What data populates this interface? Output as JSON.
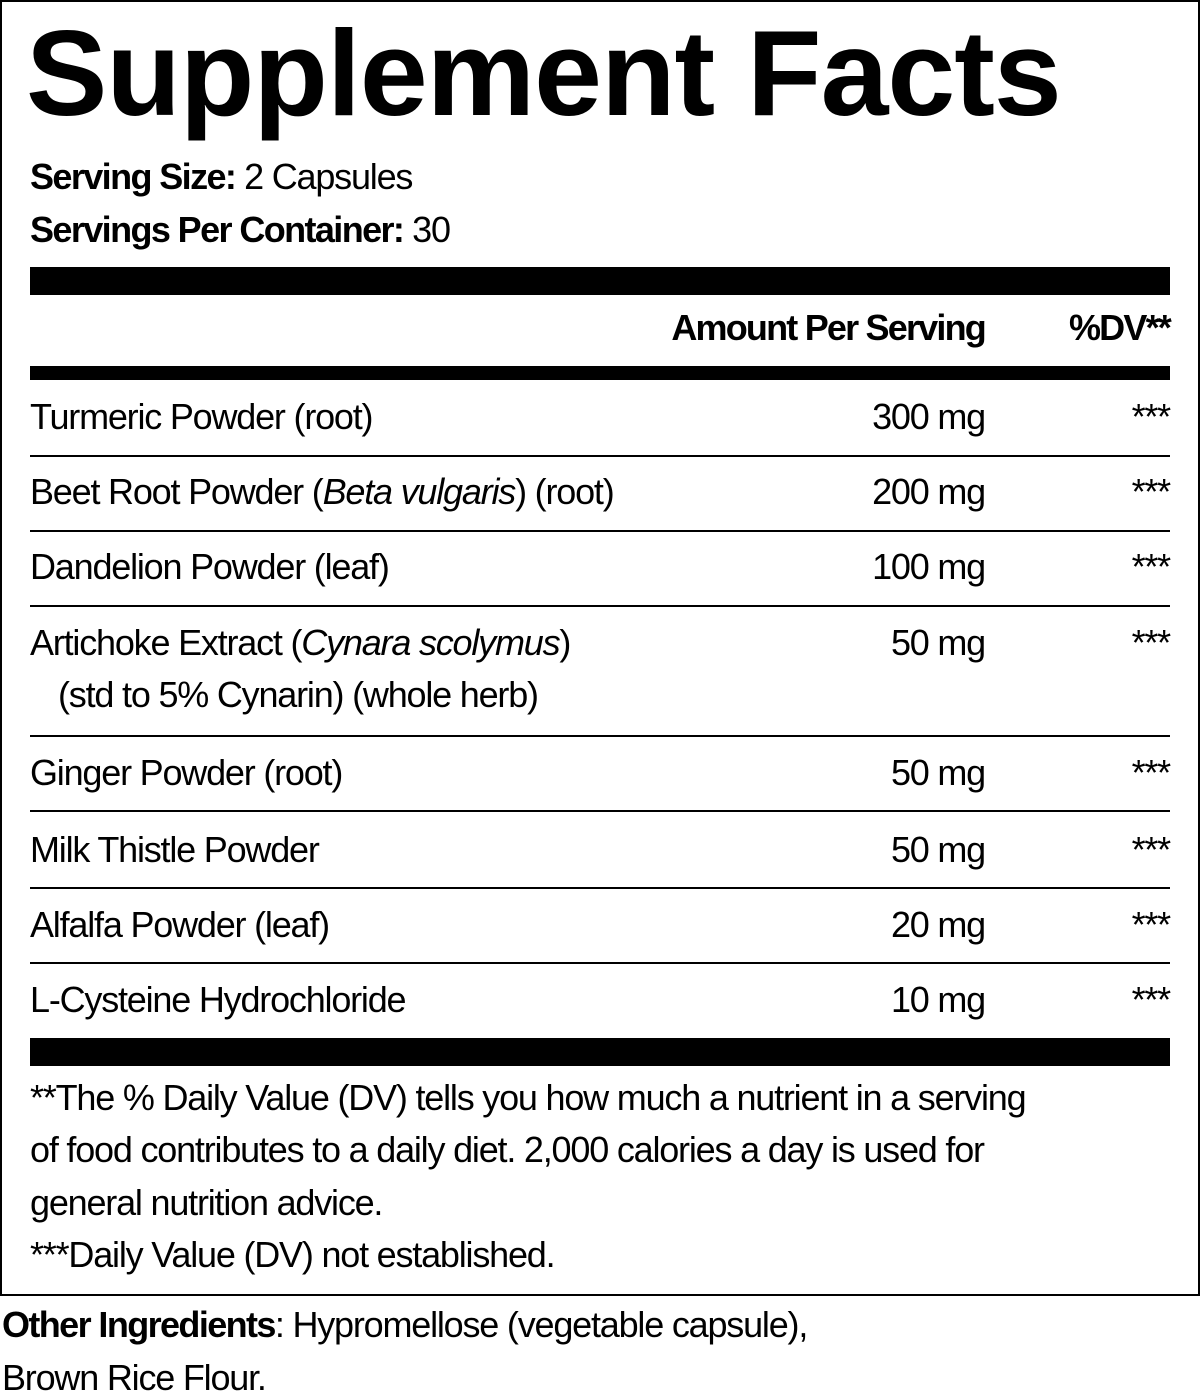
{
  "title": "Supplement Facts",
  "serving_size": {
    "label": "Serving Size:",
    "value": "2 Capsules"
  },
  "servings_per_container": {
    "label": "Servings Per Container:",
    "value": "30"
  },
  "header": {
    "amount": "Amount Per Serving",
    "dv": "%DV**"
  },
  "rows": [
    {
      "name_pre": "Turmeric Powder (root)",
      "italic": "",
      "name_post": "",
      "sub": "",
      "amount": "300 mg",
      "dv": "***"
    },
    {
      "name_pre": "Beet Root Powder (",
      "italic": "Beta vulgaris",
      "name_post": ") (root)",
      "sub": "",
      "amount": "200 mg",
      "dv": "***"
    },
    {
      "name_pre": "Dandelion Powder (leaf)",
      "italic": "",
      "name_post": "",
      "sub": "",
      "amount": "100 mg",
      "dv": "***"
    },
    {
      "name_pre": "Artichoke Extract (",
      "italic": "Cynara scolymus",
      "name_post": ")",
      "sub": "(std to 5% Cynarin) (whole herb)",
      "amount": "50 mg",
      "dv": "***"
    },
    {
      "name_pre": "Ginger Powder (root)",
      "italic": "",
      "name_post": "",
      "sub": "",
      "amount": "50 mg",
      "dv": "***"
    },
    {
      "name_pre": "Milk Thistle Powder",
      "italic": "",
      "name_post": "",
      "sub": "",
      "amount": "50 mg",
      "dv": "***"
    },
    {
      "name_pre": "Alfalfa Powder (leaf)",
      "italic": "",
      "name_post": "",
      "sub": "",
      "amount": "20 mg",
      "dv": "***"
    },
    {
      "name_pre": "L-Cysteine Hydrochloride",
      "italic": "",
      "name_post": "",
      "sub": "",
      "amount": "10 mg",
      "dv": "***"
    }
  ],
  "footnotes": [
    "**The % Daily Value (DV) tells you how much a nutrient in a serving",
    "of food contributes to a daily diet. 2,000 calories a day is used for",
    "general nutrition advice.",
    "***Daily Value (DV) not established."
  ],
  "other_ingredients": {
    "label": "Other Ingredients",
    "line1": ": Hypromellose (vegetable capsule),",
    "line2": "Brown Rice Flour."
  }
}
